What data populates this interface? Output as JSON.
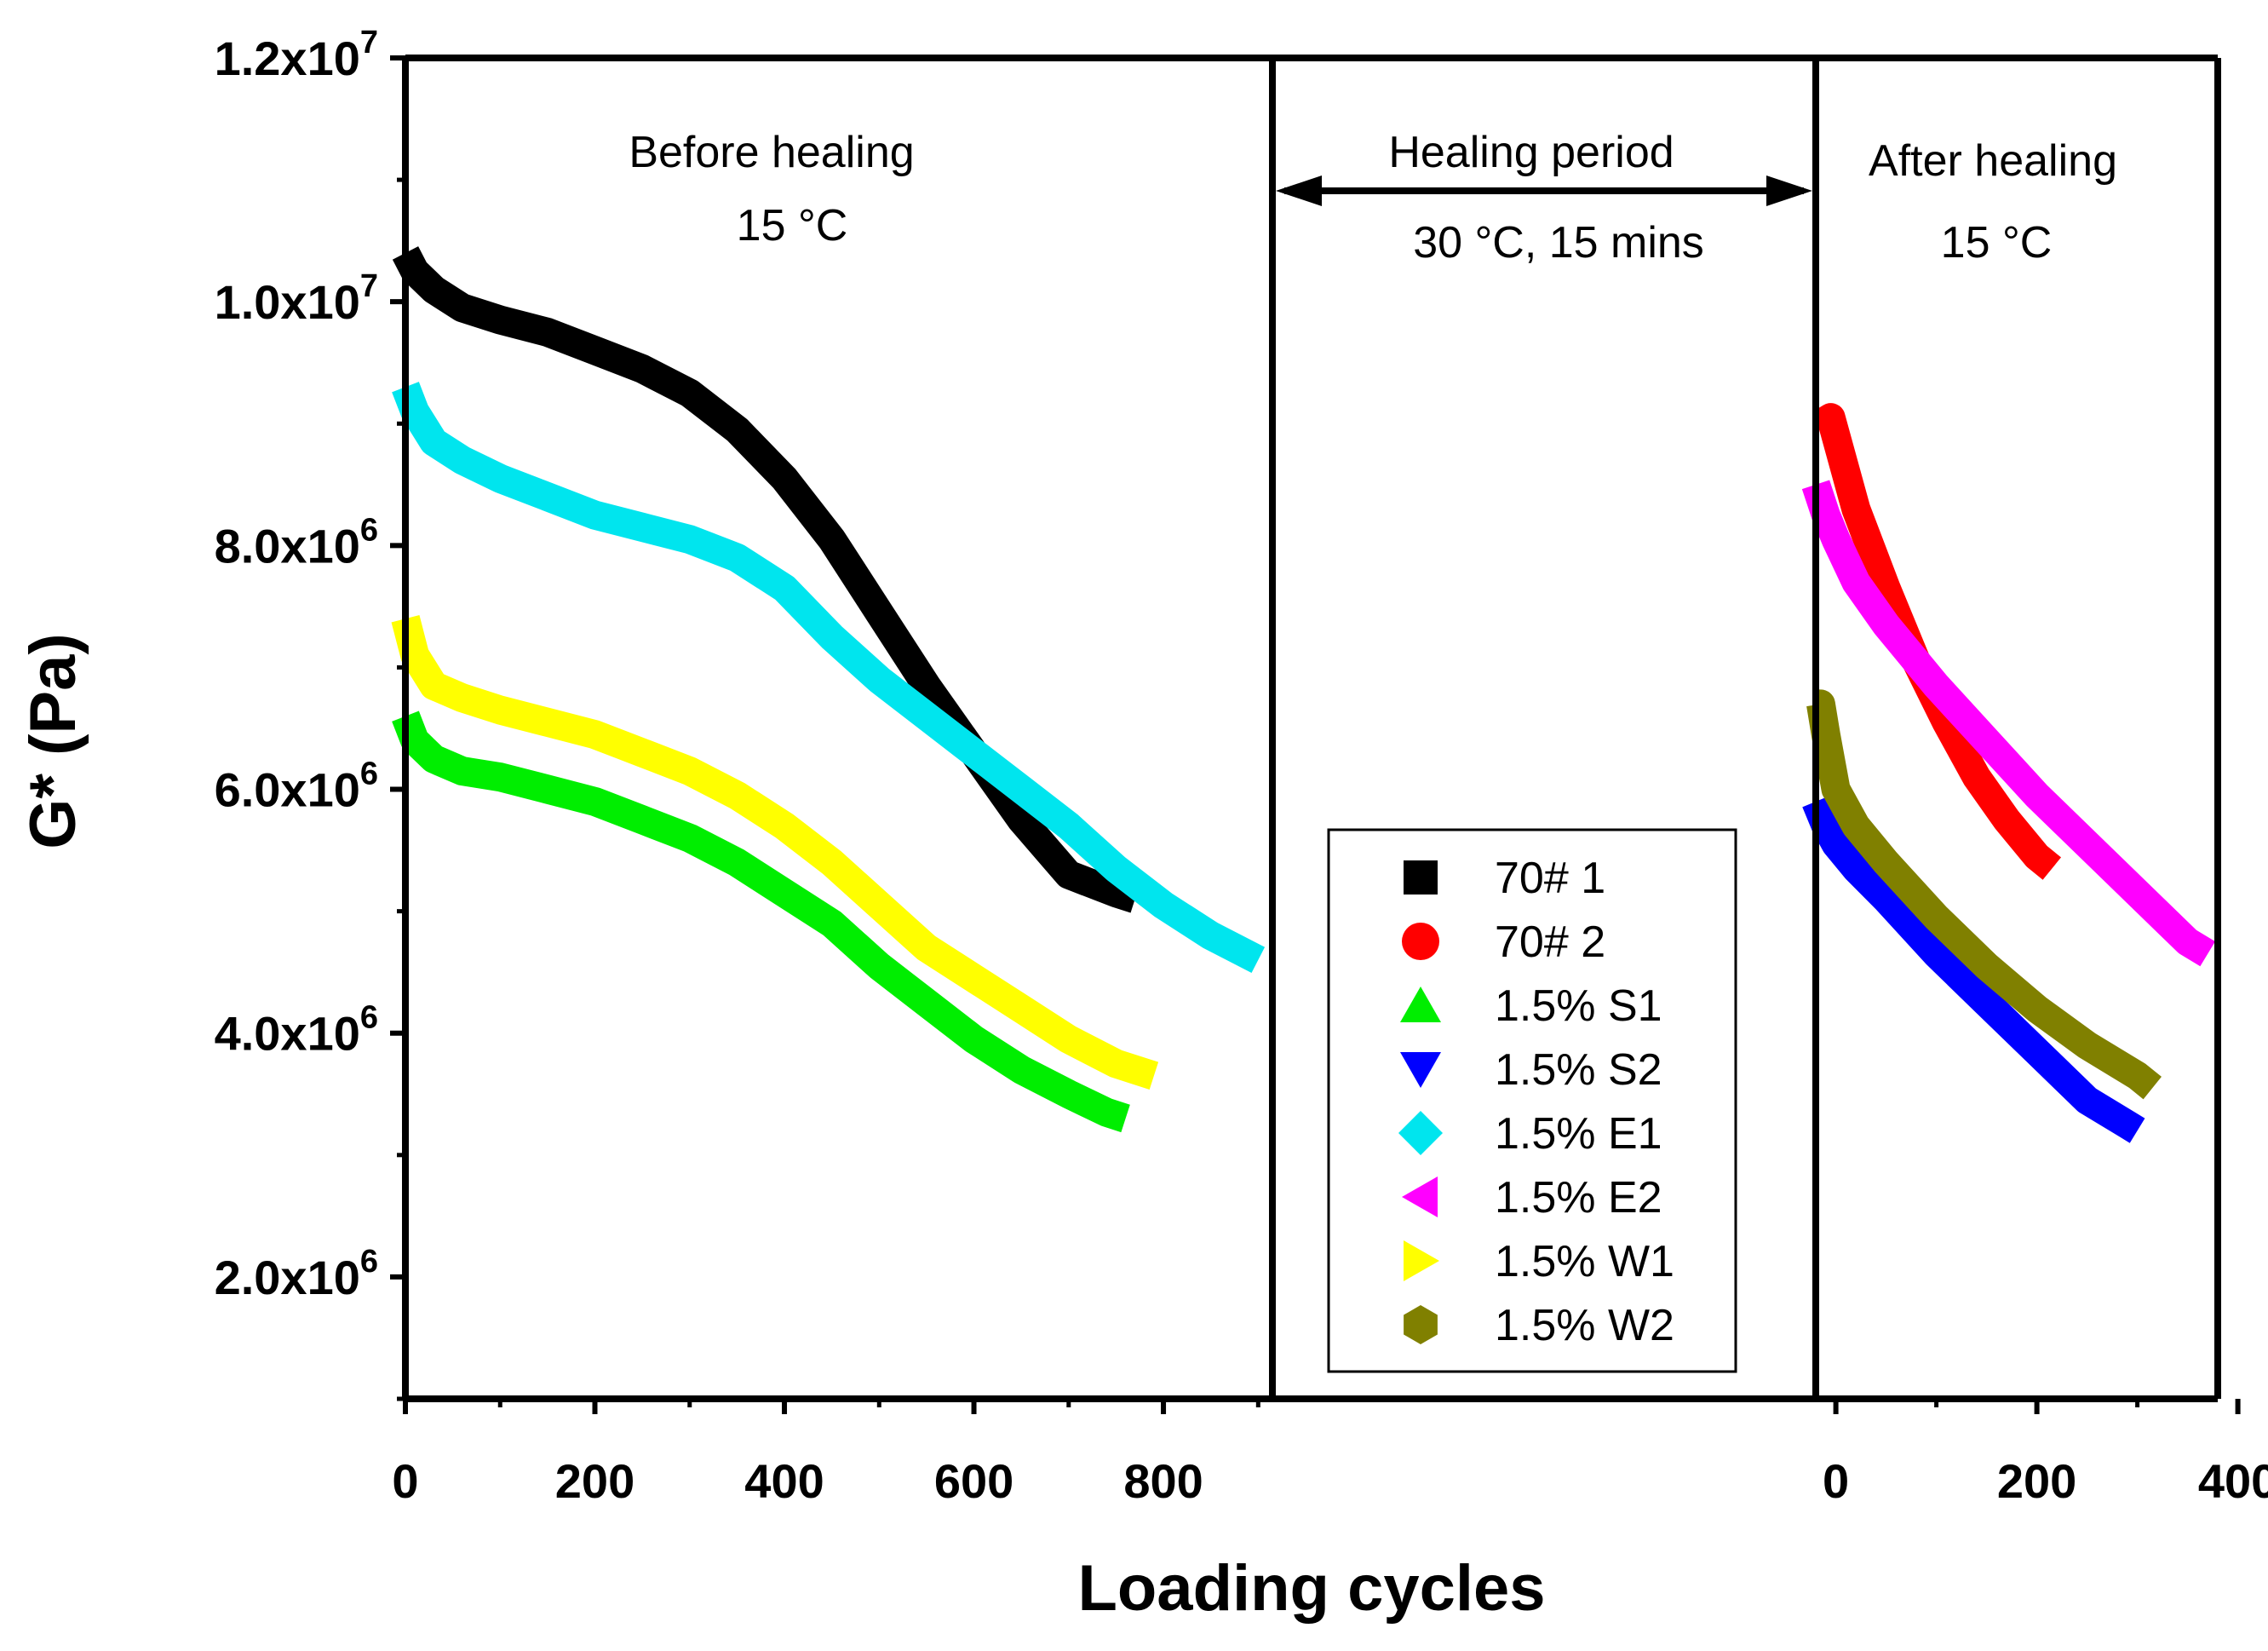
{
  "chart_data": {
    "type": "line",
    "xlabel": "Loading cycles",
    "ylabel": "G* (Pa)",
    "ylim": [
      1000000,
      12000000
    ],
    "y_ticks": [
      {
        "value": 2000000,
        "mantissa": "2.0x10",
        "exponent": "6"
      },
      {
        "value": 4000000,
        "mantissa": "4.0x10",
        "exponent": "6"
      },
      {
        "value": 6000000,
        "mantissa": "6.0x10",
        "exponent": "6"
      },
      {
        "value": 8000000,
        "mantissa": "8.0x10",
        "exponent": "6"
      },
      {
        "value": 10000000,
        "mantissa": "1.0x10",
        "exponent": "7"
      },
      {
        "value": 12000000,
        "mantissa": "1.2x10",
        "exponent": "7"
      }
    ],
    "panels": {
      "before": {
        "xlim": [
          0,
          915
        ],
        "ticks": [
          "0",
          "200",
          "400",
          "600",
          "800"
        ],
        "tick_values": [
          0,
          200,
          400,
          600,
          800
        ]
      },
      "after": {
        "xlim": [
          -20,
          380
        ],
        "ticks": [
          "0",
          "200",
          "400"
        ],
        "tick_values": [
          0,
          200,
          400
        ]
      }
    },
    "annotations": {
      "before_title": "Before healing",
      "before_temp": "15 °C",
      "healing_title": "Healing period",
      "healing_cond": "30 °C, 15 mins",
      "after_title": "After healing",
      "after_temp": "15 °C"
    },
    "series": [
      {
        "name": "70# 1",
        "color": "#000000",
        "marker": "square",
        "panel": "before",
        "x": [
          0,
          10,
          30,
          60,
          100,
          150,
          200,
          250,
          300,
          350,
          400,
          450,
          500,
          550,
          600,
          650,
          700,
          750,
          770
        ],
        "y": [
          10400000,
          10250000,
          10100000,
          9950000,
          9850000,
          9750000,
          9600000,
          9450000,
          9250000,
          8950000,
          8550000,
          8050000,
          7450000,
          6850000,
          6300000,
          5750000,
          5300000,
          5150000,
          5100000
        ]
      },
      {
        "name": "70# 2",
        "color": "#ff0000",
        "marker": "circle",
        "panel": "after",
        "x": [
          -15,
          -5,
          0,
          20,
          50,
          80,
          110,
          140,
          170,
          200,
          215
        ],
        "y": [
          9000000,
          9050000,
          8900000,
          8300000,
          7650000,
          7050000,
          6550000,
          6100000,
          5750000,
          5450000,
          5350000
        ]
      },
      {
        "name": "1.5% S1",
        "color": "#00ee00",
        "marker": "triangle-up",
        "panel": "before",
        "x": [
          0,
          10,
          30,
          60,
          100,
          150,
          200,
          250,
          300,
          350,
          400,
          450,
          500,
          550,
          600,
          650,
          700,
          740,
          760
        ],
        "y": [
          6600000,
          6400000,
          6250000,
          6150000,
          6100000,
          6000000,
          5900000,
          5750000,
          5600000,
          5400000,
          5150000,
          4900000,
          4550000,
          4250000,
          3950000,
          3700000,
          3500000,
          3350000,
          3300000
        ]
      },
      {
        "name": "1.5% S2",
        "color": "#0000ff",
        "marker": "triangle-down",
        "panel": "after",
        "x": [
          -20,
          -10,
          0,
          20,
          50,
          100,
          150,
          200,
          250,
          290,
          300
        ],
        "y": [
          5900000,
          5700000,
          5550000,
          5350000,
          5100000,
          4650000,
          4250000,
          3850000,
          3450000,
          3250000,
          3200000
        ]
      },
      {
        "name": "1.5% E1",
        "color": "#00e5ee",
        "marker": "diamond",
        "panel": "before",
        "x": [
          0,
          10,
          30,
          60,
          100,
          150,
          200,
          250,
          300,
          350,
          400,
          450,
          500,
          550,
          600,
          650,
          700,
          750,
          800,
          850,
          900
        ],
        "y": [
          9300000,
          9100000,
          8850000,
          8700000,
          8550000,
          8400000,
          8250000,
          8150000,
          8050000,
          7900000,
          7650000,
          7250000,
          6900000,
          6600000,
          6300000,
          6000000,
          5700000,
          5350000,
          5050000,
          4800000,
          4600000
        ]
      },
      {
        "name": "1.5% E2",
        "color": "#ff00ff",
        "marker": "triangle-left",
        "panel": "after",
        "x": [
          -20,
          -10,
          0,
          20,
          50,
          100,
          150,
          200,
          250,
          300,
          350,
          370
        ],
        "y": [
          8500000,
          8250000,
          8050000,
          7700000,
          7350000,
          6850000,
          6400000,
          5950000,
          5550000,
          5150000,
          4750000,
          4650000
        ]
      },
      {
        "name": "1.5% W1",
        "color": "#ffff00",
        "marker": "triangle-right",
        "panel": "before",
        "x": [
          0,
          10,
          30,
          60,
          100,
          150,
          200,
          250,
          300,
          350,
          400,
          450,
          500,
          550,
          600,
          650,
          700,
          750,
          790
        ],
        "y": [
          7400000,
          7100000,
          6850000,
          6750000,
          6650000,
          6550000,
          6450000,
          6300000,
          6150000,
          5950000,
          5700000,
          5400000,
          5050000,
          4700000,
          4450000,
          4200000,
          3950000,
          3750000,
          3650000
        ]
      },
      {
        "name": "1.5% W2",
        "color": "#808000",
        "marker": "hexagon",
        "panel": "after",
        "x": [
          -20,
          -15,
          -10,
          0,
          20,
          50,
          100,
          150,
          200,
          250,
          300,
          315
        ],
        "y": [
          6700000,
          6700000,
          6450000,
          6000000,
          5700000,
          5400000,
          4950000,
          4550000,
          4200000,
          3900000,
          3650000,
          3550000
        ]
      }
    ]
  }
}
